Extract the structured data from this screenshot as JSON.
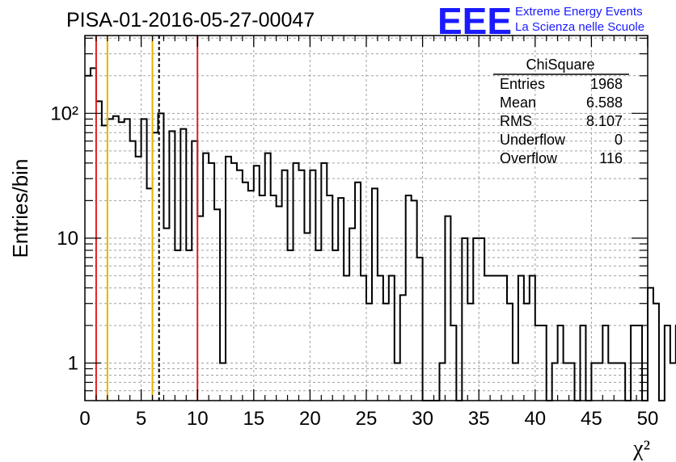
{
  "chart_data": {
    "type": "histogram",
    "title": "PISA-01-2016-05-27-00047",
    "xlabel": "χ²",
    "ylabel": "Entries/bin",
    "y_scale": "log",
    "xlim": [
      0,
      50
    ],
    "ylim": [
      0.5,
      420
    ],
    "grid": true,
    "bin_width": 0.5,
    "x_ticks": [
      "0",
      "5",
      "10",
      "15",
      "20",
      "25",
      "30",
      "35",
      "40",
      "45",
      "50"
    ],
    "y_ticks": [
      "1",
      "10",
      "10²"
    ],
    "values": [
      200,
      230,
      125,
      80,
      90,
      95,
      85,
      90,
      60,
      45,
      90,
      25,
      70,
      100,
      12,
      72,
      8,
      75,
      8,
      60,
      15,
      48,
      40,
      17,
      1,
      45,
      40,
      35,
      28,
      24,
      38,
      22,
      48,
      22,
      18,
      35,
      8,
      40,
      35,
      11,
      35,
      8,
      40,
      22,
      8,
      21,
      5,
      12,
      28,
      5,
      3,
      25,
      5,
      3,
      5,
      1,
      3.5,
      22,
      20,
      7,
      0,
      0,
      0,
      1,
      15,
      2,
      0.4,
      10,
      3,
      10,
      10,
      5,
      5,
      5,
      5,
      3,
      1,
      5,
      3,
      5,
      2,
      2,
      0.4,
      1,
      2,
      1,
      1,
      0.4,
      2,
      0.4,
      1,
      1,
      2,
      1,
      1,
      1,
      0.4,
      2,
      2,
      0.4,
      4,
      3,
      0.4,
      2,
      1,
      2,
      1,
      0.4,
      0.4,
      0.4,
      1,
      1,
      2,
      1,
      1,
      0.4,
      2,
      2,
      2,
      0.4,
      1,
      1,
      1,
      1,
      0.4,
      0.4,
      5,
      3,
      0.4,
      0.4,
      0.4,
      1,
      1,
      1,
      0.4,
      1,
      0.4,
      0.4,
      0.4,
      0.4,
      2,
      2,
      1,
      1,
      1,
      0.4,
      0.4,
      0.4,
      0.4,
      0.4,
      0.4,
      0.4,
      5,
      3,
      3,
      0.4,
      0.4,
      0.4,
      0.4,
      0.4,
      0.4,
      0.4,
      0.4,
      1,
      1,
      1,
      0.4,
      0.4,
      0.4,
      0.4,
      0.4,
      0.4,
      0.4,
      0.4,
      0.4,
      0.4,
      0.4,
      0.4,
      2,
      2,
      2,
      2,
      0.4,
      0.4,
      0.4,
      0.4,
      0.4,
      0.4,
      0.4,
      0.4,
      0.4,
      0.4,
      0.4,
      0.4,
      0.4,
      0.4,
      0.4,
      0.4,
      0.4,
      0.4,
      0.4,
      0.4,
      0.4,
      0.4,
      0.4,
      0.4,
      0.4,
      0.4,
      0.4,
      0.4,
      0.4,
      0.4
    ],
    "vertical_lines": [
      {
        "x": 1,
        "color": "#e02020",
        "style": "solid"
      },
      {
        "x": 2,
        "color": "#e8b400",
        "style": "solid"
      },
      {
        "x": 6,
        "color": "#e8b400",
        "style": "solid"
      },
      {
        "x": 6.588,
        "color": "#000000",
        "style": "dashed"
      },
      {
        "x": 10,
        "color": "#e02020",
        "style": "solid"
      }
    ],
    "stats": {
      "name": "ChiSquare",
      "rows": [
        {
          "label": "Entries",
          "value": "1968"
        },
        {
          "label": "Mean",
          "value": "6.588"
        },
        {
          "label": "RMS",
          "value": "8.107"
        },
        {
          "label": "Underflow",
          "value": "0"
        },
        {
          "label": "Overflow",
          "value": "116"
        }
      ]
    }
  },
  "logo": {
    "mark": "EEE",
    "line1": "Extreme Energy Events",
    "line2": "La Scienza nelle Scuole",
    "color": "#1a1aff"
  }
}
